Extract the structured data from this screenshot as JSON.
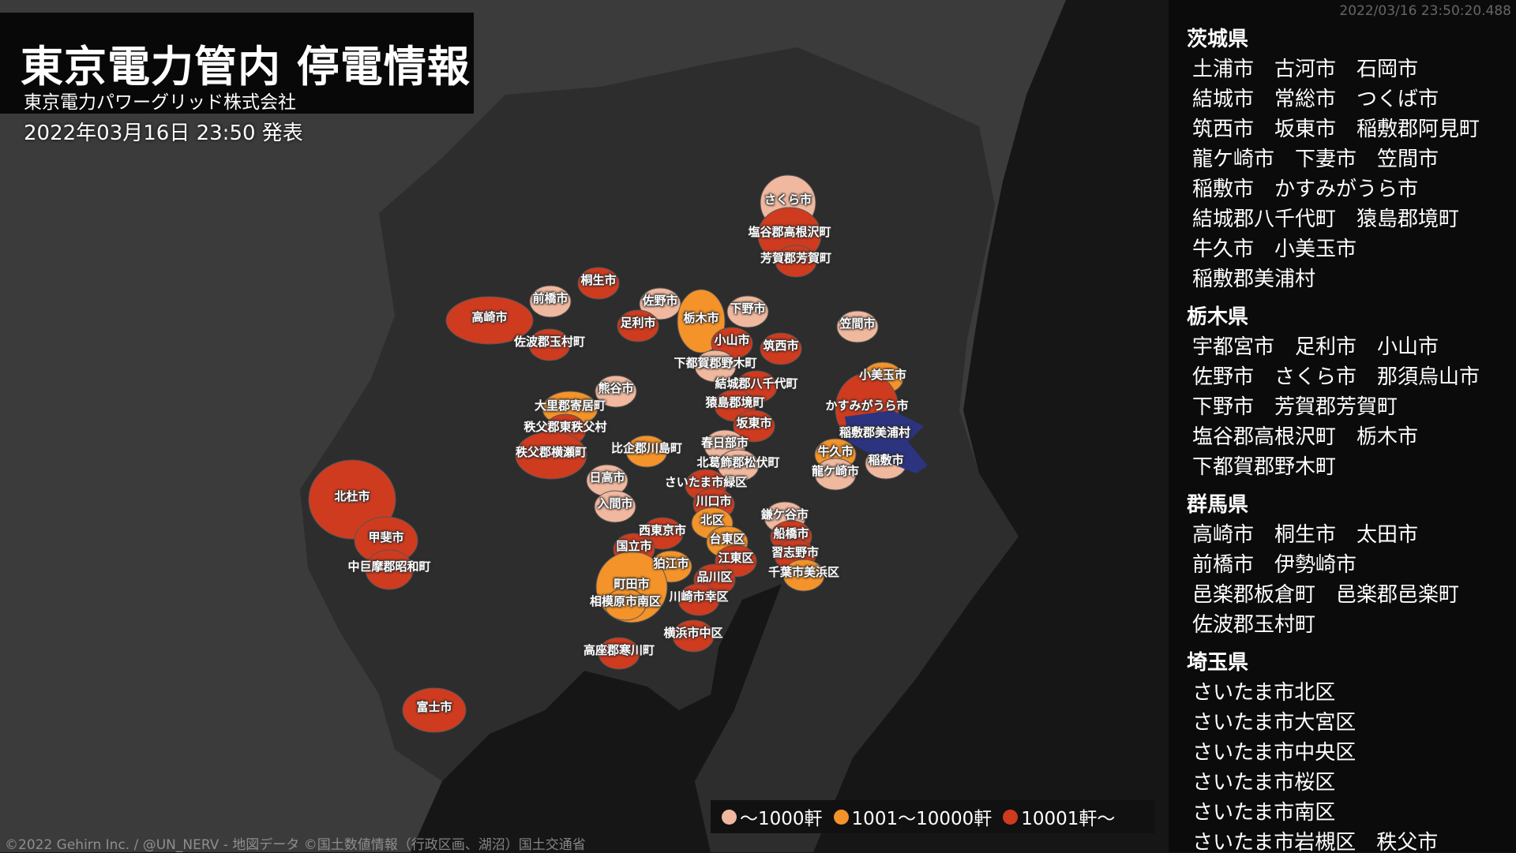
{
  "header": {
    "title": "東京電力管内 停電情報",
    "subtitle": "東京電力パワーグリッド株式会社",
    "published": "2022年03月16日 23:50 発表"
  },
  "colors": {
    "low": "#f0b89e",
    "mid": "#f3932a",
    "high": "#cf3b1f",
    "sea": "#161616",
    "land": "#2d2d2d",
    "outer_land": "#3b3b3b",
    "lake": "#2c3480"
  },
  "legend": [
    {
      "label": "～1000軒",
      "level": "low"
    },
    {
      "label": "1001～10000軒",
      "level": "mid"
    },
    {
      "label": "10001軒～",
      "level": "high"
    }
  ],
  "map_labels": [
    {
      "name": "さくら市",
      "level": "low"
    },
    {
      "name": "塩谷郡高根沢町",
      "level": "high"
    },
    {
      "name": "芳賀郡芳賀町",
      "level": "high"
    },
    {
      "name": "桐生市",
      "level": "high"
    },
    {
      "name": "前橋市",
      "level": "low"
    },
    {
      "name": "佐野市",
      "level": "low"
    },
    {
      "name": "高崎市",
      "level": "high"
    },
    {
      "name": "足利市",
      "level": "high"
    },
    {
      "name": "栃木市",
      "level": "mid"
    },
    {
      "name": "下野市",
      "level": "low"
    },
    {
      "name": "笠間市",
      "level": "low"
    },
    {
      "name": "佐波郡玉村町",
      "level": "high"
    },
    {
      "name": "小山市",
      "level": "high"
    },
    {
      "name": "筑西市",
      "level": "high"
    },
    {
      "name": "下都賀郡野木町",
      "level": "low"
    },
    {
      "name": "小美玉市",
      "level": "mid"
    },
    {
      "name": "結城郡八千代町",
      "level": "high"
    },
    {
      "name": "熊谷市",
      "level": "low"
    },
    {
      "name": "大里郡寄居町",
      "level": "mid"
    },
    {
      "name": "猿島郡境町",
      "level": "high"
    },
    {
      "name": "かすみがうら市",
      "level": "high"
    },
    {
      "name": "坂東市",
      "level": "high"
    },
    {
      "name": "秩父郡東秩父村",
      "level": "high"
    },
    {
      "name": "稲敷郡美浦村",
      "level": "low"
    },
    {
      "name": "比企郡川島町",
      "level": "mid"
    },
    {
      "name": "春日部市",
      "level": "low"
    },
    {
      "name": "牛久市",
      "level": "mid"
    },
    {
      "name": "秩父郡横瀬町",
      "level": "high"
    },
    {
      "name": "北葛飾郡松伏町",
      "level": "low"
    },
    {
      "name": "稲敷市",
      "level": "low"
    },
    {
      "name": "龍ケ崎市",
      "level": "low"
    },
    {
      "name": "北杜市",
      "level": "high"
    },
    {
      "name": "日高市",
      "level": "low"
    },
    {
      "name": "さいたま市緑区",
      "level": "high"
    },
    {
      "name": "川口市",
      "level": "high"
    },
    {
      "name": "入間市",
      "level": "low"
    },
    {
      "name": "鎌ケ谷市",
      "level": "low"
    },
    {
      "name": "北区",
      "level": "mid"
    },
    {
      "name": "西東京市",
      "level": "high"
    },
    {
      "name": "船橋市",
      "level": "high"
    },
    {
      "name": "甲斐市",
      "level": "high"
    },
    {
      "name": "台東区",
      "level": "mid"
    },
    {
      "name": "国立市",
      "level": "high"
    },
    {
      "name": "習志野市",
      "level": "high"
    },
    {
      "name": "江東区",
      "level": "high"
    },
    {
      "name": "狛江市",
      "level": "mid"
    },
    {
      "name": "千葉市美浜区",
      "level": "mid"
    },
    {
      "name": "中巨摩郡昭和町",
      "level": "high"
    },
    {
      "name": "品川区",
      "level": "high"
    },
    {
      "name": "町田市",
      "level": "mid"
    },
    {
      "name": "相模原市南区",
      "level": "mid"
    },
    {
      "name": "川崎市幸区",
      "level": "high"
    },
    {
      "name": "横浜市中区",
      "level": "high"
    },
    {
      "name": "高座郡寒川町",
      "level": "high"
    },
    {
      "name": "富士市",
      "level": "high"
    }
  ],
  "credit": "©2022 Gehirn Inc. / @UN_NERV - 地図データ ©国土数値情報（行政区画、湖沼）国土交通省",
  "timestamp": "2022/03/16 23:50:20.488",
  "sidebar": [
    {
      "prefecture": "茨城県",
      "rows": [
        [
          "土浦市",
          "古河市",
          "石岡市"
        ],
        [
          "結城市",
          "常総市",
          "つくば市"
        ],
        [
          "筑西市",
          "坂東市",
          "稲敷郡阿見町"
        ],
        [
          "龍ケ崎市",
          "下妻市",
          "笠間市"
        ],
        [
          "稲敷市",
          "かすみがうら市"
        ],
        [
          "結城郡八千代町",
          "猿島郡境町"
        ],
        [
          "牛久市",
          "小美玉市"
        ],
        [
          "稲敷郡美浦村"
        ]
      ]
    },
    {
      "prefecture": "栃木県",
      "rows": [
        [
          "宇都宮市",
          "足利市",
          "小山市"
        ],
        [
          "佐野市",
          "さくら市",
          "那須烏山市"
        ],
        [
          "下野市",
          "芳賀郡芳賀町"
        ],
        [
          "塩谷郡高根沢町",
          "栃木市"
        ],
        [
          "下都賀郡野木町"
        ]
      ]
    },
    {
      "prefecture": "群馬県",
      "rows": [
        [
          "高崎市",
          "桐生市",
          "太田市"
        ],
        [
          "前橋市",
          "伊勢崎市"
        ],
        [
          "邑楽郡板倉町",
          "邑楽郡邑楽町"
        ],
        [
          "佐波郡玉村町"
        ]
      ]
    },
    {
      "prefecture": "埼玉県",
      "rows": [
        [
          "さいたま市北区"
        ],
        [
          "さいたま市大宮区"
        ],
        [
          "さいたま市中央区"
        ],
        [
          "さいたま市桜区"
        ],
        [
          "さいたま市南区"
        ],
        [
          "さいたま市岩槻区",
          "秩父市"
        ]
      ]
    }
  ]
}
